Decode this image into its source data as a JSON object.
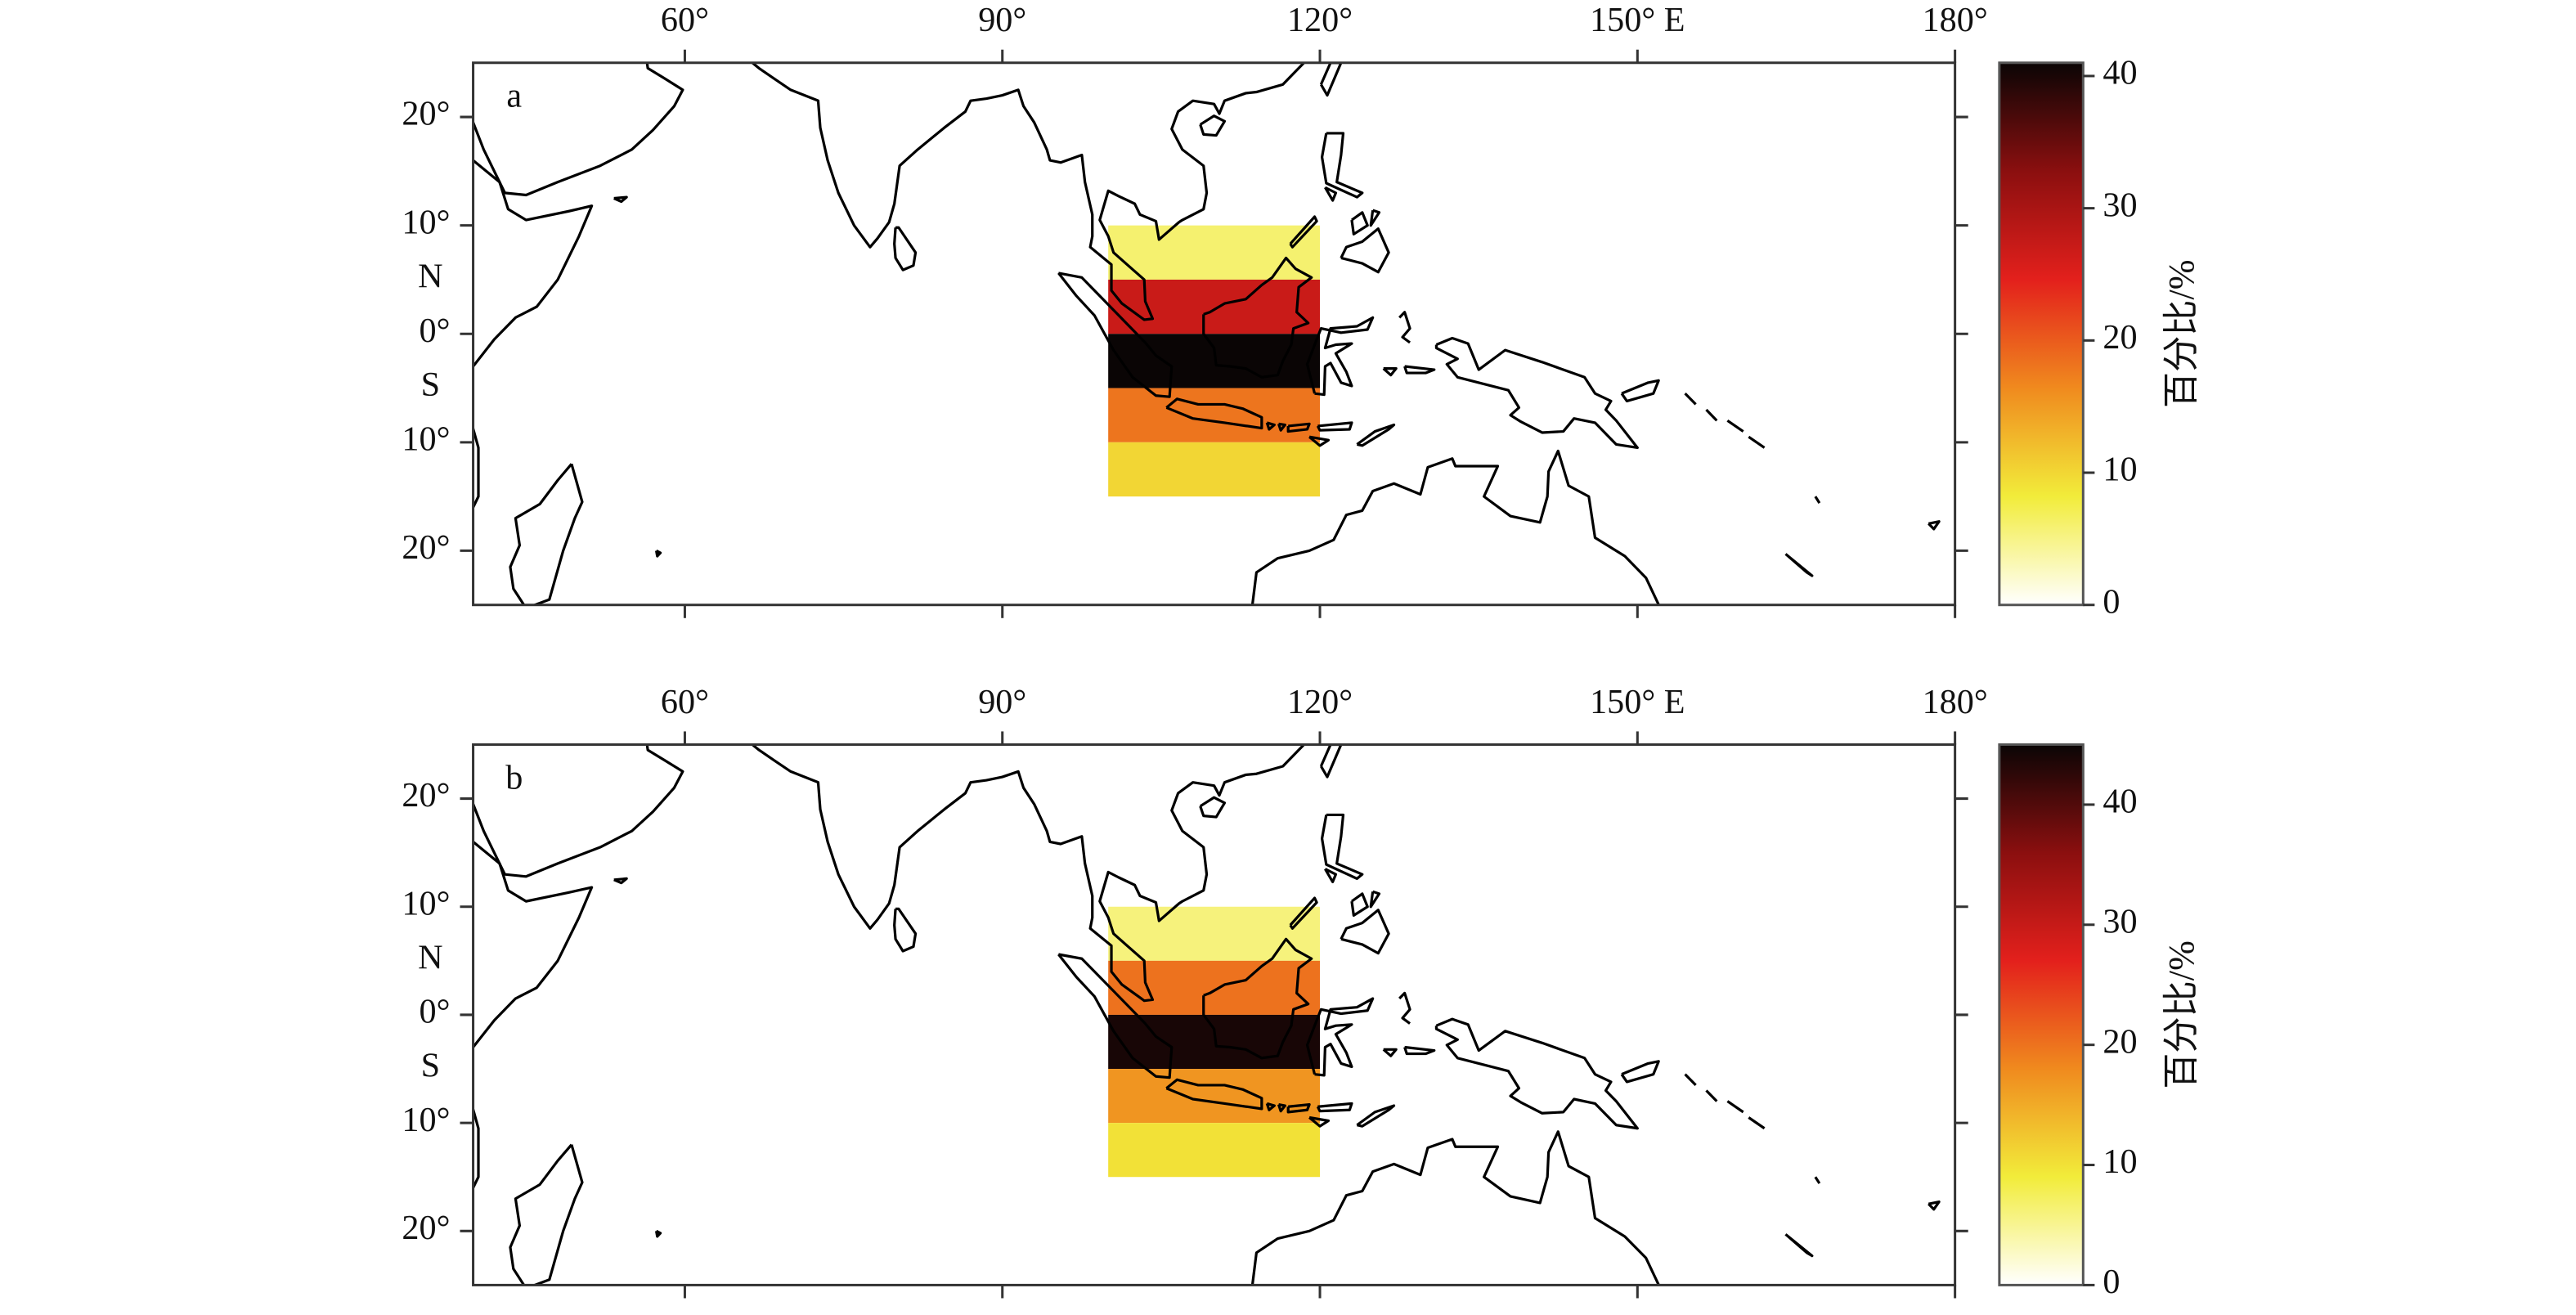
{
  "chart_data": [
    {
      "type": "heatmap",
      "panel_label": "a",
      "xlim": [
        40,
        180
      ],
      "xticks": [
        {
          "value": 60,
          "label": "60°"
        },
        {
          "value": 90,
          "label": "90°"
        },
        {
          "value": 120,
          "label": "120°"
        },
        {
          "value": 150,
          "label": "150° E"
        },
        {
          "value": 180,
          "label": "180°"
        }
      ],
      "ylim": [
        -25,
        25
      ],
      "yticks": [
        {
          "value": 20,
          "label": "20°"
        },
        {
          "value": 10,
          "label": "10°"
        },
        {
          "value": 0,
          "label": "0°"
        },
        {
          "value": -10,
          "label": "10°"
        },
        {
          "value": -20,
          "label": "20°"
        }
      ],
      "hemisphere_labels": [
        {
          "value": 5,
          "label": "N"
        },
        {
          "value": -5,
          "label": "S"
        }
      ],
      "x_range": [
        100,
        120
      ],
      "y_edges": [
        10,
        5,
        0,
        -5,
        -10,
        -15
      ],
      "values": [
        6,
        27,
        41,
        18,
        10
      ],
      "colorbar": {
        "label": "百分比/%",
        "lim": [
          0,
          41
        ],
        "ticks": [
          0,
          10,
          20,
          30,
          40
        ],
        "colors": [
          "#ffffff",
          "#f2ec3a",
          "#f08a1e",
          "#e3201c",
          "#8b0f0f",
          "#0a0505"
        ]
      }
    },
    {
      "type": "heatmap",
      "panel_label": "b",
      "xlim": [
        40,
        180
      ],
      "xticks": [
        {
          "value": 60,
          "label": "60°"
        },
        {
          "value": 90,
          "label": "90°"
        },
        {
          "value": 120,
          "label": "120°"
        },
        {
          "value": 150,
          "label": "150° E"
        },
        {
          "value": 180,
          "label": "180°"
        }
      ],
      "ylim": [
        -25,
        25
      ],
      "yticks": [
        {
          "value": 20,
          "label": "20°"
        },
        {
          "value": 10,
          "label": "10°"
        },
        {
          "value": 0,
          "label": "0°"
        },
        {
          "value": -10,
          "label": "10°"
        },
        {
          "value": -20,
          "label": "20°"
        }
      ],
      "hemisphere_labels": [
        {
          "value": 5,
          "label": "N"
        },
        {
          "value": -5,
          "label": "S"
        }
      ],
      "x_range": [
        100,
        120
      ],
      "y_edges": [
        10,
        5,
        0,
        -5,
        -10,
        -15
      ],
      "values": [
        6,
        20,
        44,
        17,
        10
      ],
      "colorbar": {
        "label": "百分比/%",
        "lim": [
          0,
          45
        ],
        "ticks": [
          0,
          10,
          20,
          30,
          40
        ],
        "colors": [
          "#ffffff",
          "#f2ec3a",
          "#f08a1e",
          "#e3201c",
          "#8b0f0f",
          "#0a0505"
        ]
      }
    }
  ]
}
